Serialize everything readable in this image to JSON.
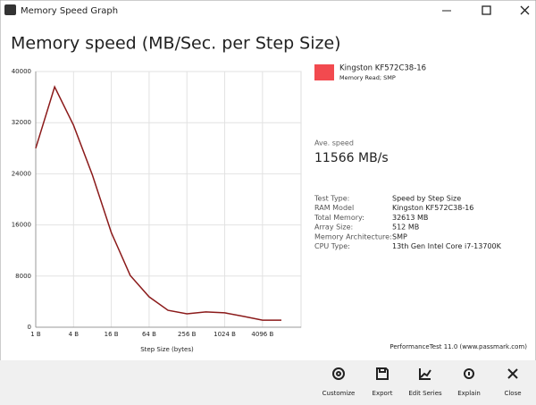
{
  "window": {
    "title": "Memory Speed Graph"
  },
  "chart_data": {
    "type": "line",
    "title": "Memory speed (MB/Sec. per Step Size)",
    "x_label": "Step Size (bytes)",
    "categories": [
      "1 B",
      null,
      "4 B",
      null,
      "16 B",
      null,
      "64 B",
      null,
      "256 B",
      null,
      "1024 B",
      null,
      "4096 B",
      null
    ],
    "series": [
      {
        "name": "Kingston KF572C38-16",
        "legend_note": "Memory Read; SMP",
        "color": "#8b1a1a",
        "legend_color": "#f24a4f",
        "values": [
          28000,
          37600,
          31600,
          23800,
          14800,
          8100,
          4750,
          2650,
          2100,
          2400,
          2250,
          1700,
          1100,
          1100
        ]
      }
    ],
    "ylim": [
      0,
      40000
    ],
    "yticks": [
      0,
      8000,
      16000,
      24000,
      32000,
      40000
    ],
    "grid": true
  },
  "summary": {
    "label": "Ave. speed",
    "value": "11566 MB/s"
  },
  "info": [
    [
      "Test Type:",
      "Speed by Step Size"
    ],
    [
      "RAM Model",
      "Kingston KF572C38-16"
    ],
    [
      "Total Memory:",
      "32613 MB"
    ],
    [
      "Array Size:",
      "512 MB"
    ],
    [
      "Memory Architecture:",
      "SMP"
    ],
    [
      "CPU Type:",
      "13th Gen Intel Core i7-13700K"
    ]
  ],
  "footer": "PerformanceTest 11.0 (www.passmark.com)",
  "toolbar": [
    "Customize",
    "Export",
    "Edit Series",
    "Explain",
    "Close"
  ]
}
